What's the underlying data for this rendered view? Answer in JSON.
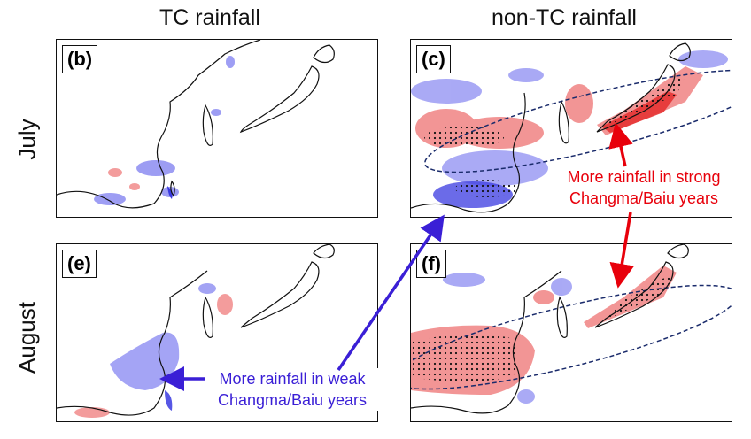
{
  "columns": {
    "tc": "TC rainfall",
    "nontc": "non-TC rainfall"
  },
  "rows": {
    "july": "July",
    "august": "August"
  },
  "panels": {
    "b": "(b)",
    "c": "(c)",
    "e": "(e)",
    "f": "(f)"
  },
  "annotations": {
    "strong": {
      "line1": "More rainfall in strong",
      "line2": "Changma/Baiu years",
      "color": "#e8000b"
    },
    "weak": {
      "line1": "More rainfall in weak",
      "line2": "Changma/Baiu years",
      "color": "#3a1fd6"
    }
  },
  "colors": {
    "positive": "#ef7b7b",
    "negative": "#8d8df2",
    "stipple": "#111111",
    "coast": "#111111"
  }
}
